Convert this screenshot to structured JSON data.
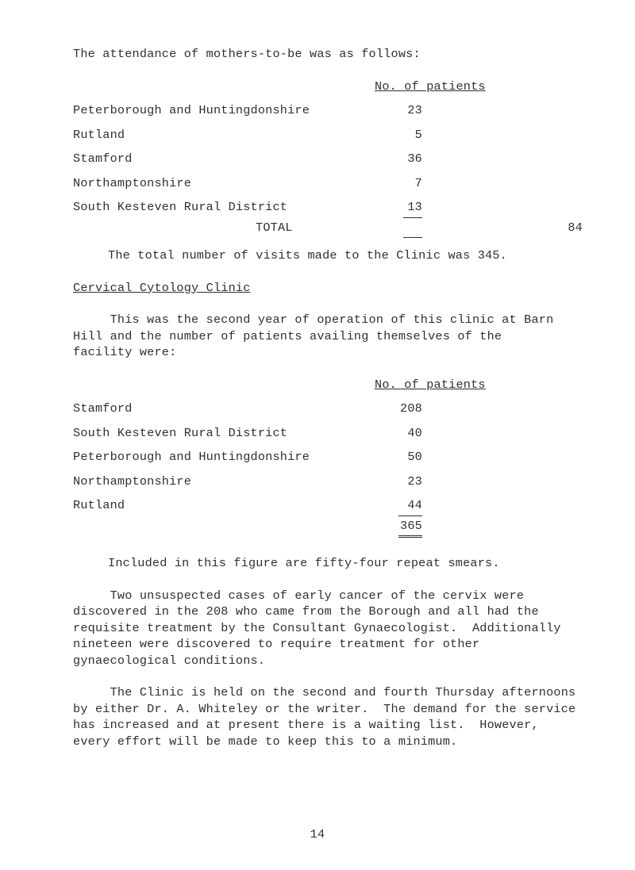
{
  "intro": "The attendance of mothers-to-be was as follows:",
  "header_patients": "No. of patients",
  "table1": {
    "rows": [
      {
        "label": "Peterborough and Huntingdonshire",
        "value": "23"
      },
      {
        "label": "Rutland",
        "value": "5"
      },
      {
        "label": "Stamford",
        "value": "36"
      },
      {
        "label": "Northamptonshire",
        "value": "7"
      },
      {
        "label": "South Kesteven Rural District",
        "value": "13"
      }
    ],
    "total_label": "TOTAL",
    "total_value": "84"
  },
  "visits_line": "The total number of visits made to the Clinic was 345.",
  "section_heading": "Cervical Cytology Clinic",
  "para2a": "     This was the second year of operation of this clinic at Barn",
  "para2b": "Hill and the number of patients availing themselves of the",
  "para2c": "facility were:",
  "table2": {
    "rows": [
      {
        "label": "Stamford",
        "value": "208"
      },
      {
        "label": "South Kesteven Rural District",
        "value": "40"
      },
      {
        "label": "Peterborough and Huntingdonshire",
        "value": "50"
      },
      {
        "label": "Northamptonshire",
        "value": "23"
      },
      {
        "label": "Rutland",
        "value": "44"
      }
    ],
    "total_value": "365"
  },
  "included_line": "Included in this figure are fifty-four repeat smears.",
  "para3a": "     Two unsuspected cases of early cancer of the cervix were",
  "para3b": "discovered in the 208 who came from the Borough and all had the",
  "para3c": "requisite treatment by the Consultant Gynaecologist.  Additionally",
  "para3d": "nineteen were discovered to require treatment for other",
  "para3e": "gynaecological conditions.",
  "para4a": "     The Clinic is held on the second and fourth Thursday afternoons",
  "para4b": "by either Dr. A. Whiteley or the writer.  The demand for the service",
  "para4c": "has increased and at present there is a waiting list.  However,",
  "para4d": "every effort will be made to keep this to a minimum.",
  "page_number": "14"
}
